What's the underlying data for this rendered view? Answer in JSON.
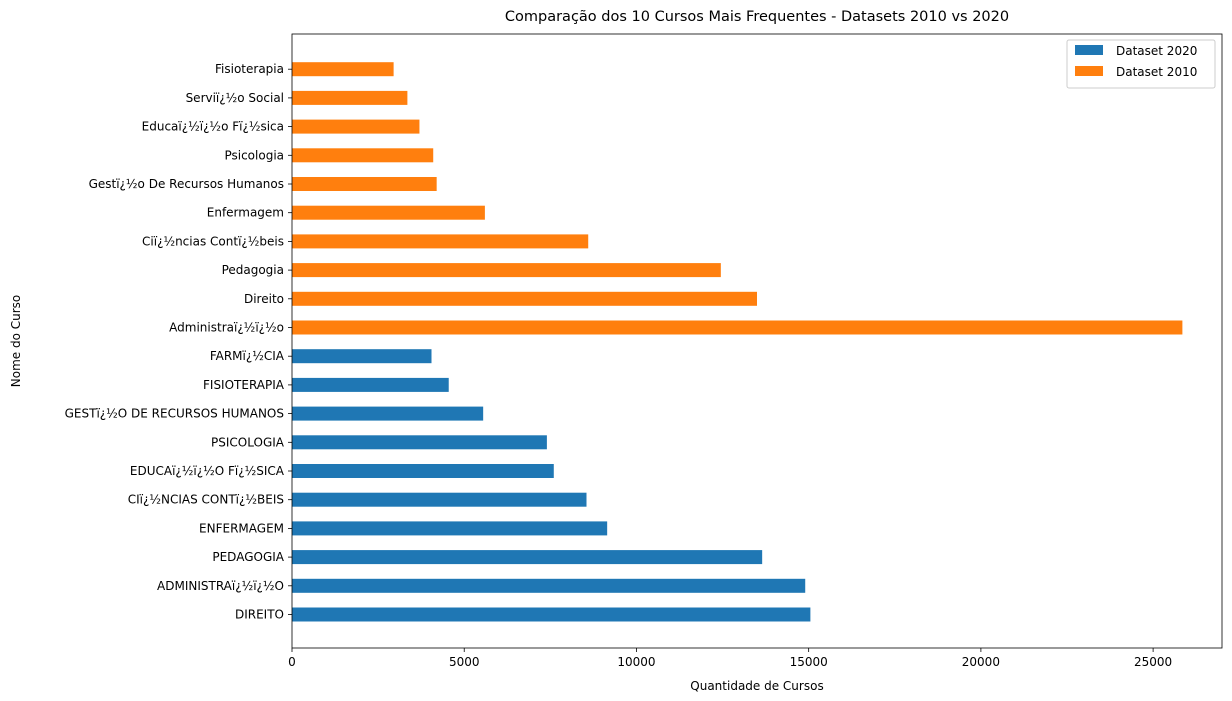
{
  "chart_data": {
    "type": "bar",
    "orientation": "horizontal",
    "title": "Comparação dos 10 Cursos Mais Frequentes - Datasets 2010 vs 2020",
    "xlabel": "Quantidade de Cursos",
    "ylabel": "Nome do Curso",
    "xlim": [
      0,
      27000
    ],
    "xticks": [
      0,
      5000,
      10000,
      15000,
      20000,
      25000
    ],
    "grid": false,
    "legend_position": "top-right",
    "categories": [
      "DIREITO",
      "ADMINISTRAï¿½ï¿½O",
      "PEDAGOGIA",
      "ENFERMAGEM",
      "CIï¿½NCIAS CONTï¿½BEIS",
      "EDUCAï¿½ï¿½O Fï¿½SICA",
      "PSICOLOGIA",
      "GESTï¿½O DE RECURSOS HUMANOS",
      "FISIOTERAPIA",
      "FARMï¿½CIA",
      "Administraï¿½ï¿½o",
      "Direito",
      "Pedagogia",
      "Ciï¿½ncias Contï¿½beis",
      "Enfermagem",
      "Gestï¿½o De Recursos Humanos",
      "Psicologia",
      "Educaï¿½ï¿½o Fï¿½sica",
      "Serviï¿½o Social",
      "Fisioterapia"
    ],
    "series": [
      {
        "name": "Dataset 2020",
        "color": "#1f77b4",
        "values": [
          15050,
          14900,
          13650,
          9150,
          8550,
          7600,
          7400,
          5550,
          4550,
          4050,
          null,
          null,
          null,
          null,
          null,
          null,
          null,
          null,
          null,
          null
        ]
      },
      {
        "name": "Dataset 2010",
        "color": "#ff7f0e",
        "values": [
          null,
          null,
          null,
          null,
          null,
          null,
          null,
          null,
          null,
          null,
          25850,
          13500,
          12450,
          8600,
          5600,
          4200,
          4100,
          3700,
          3350,
          2950
        ]
      }
    ]
  }
}
